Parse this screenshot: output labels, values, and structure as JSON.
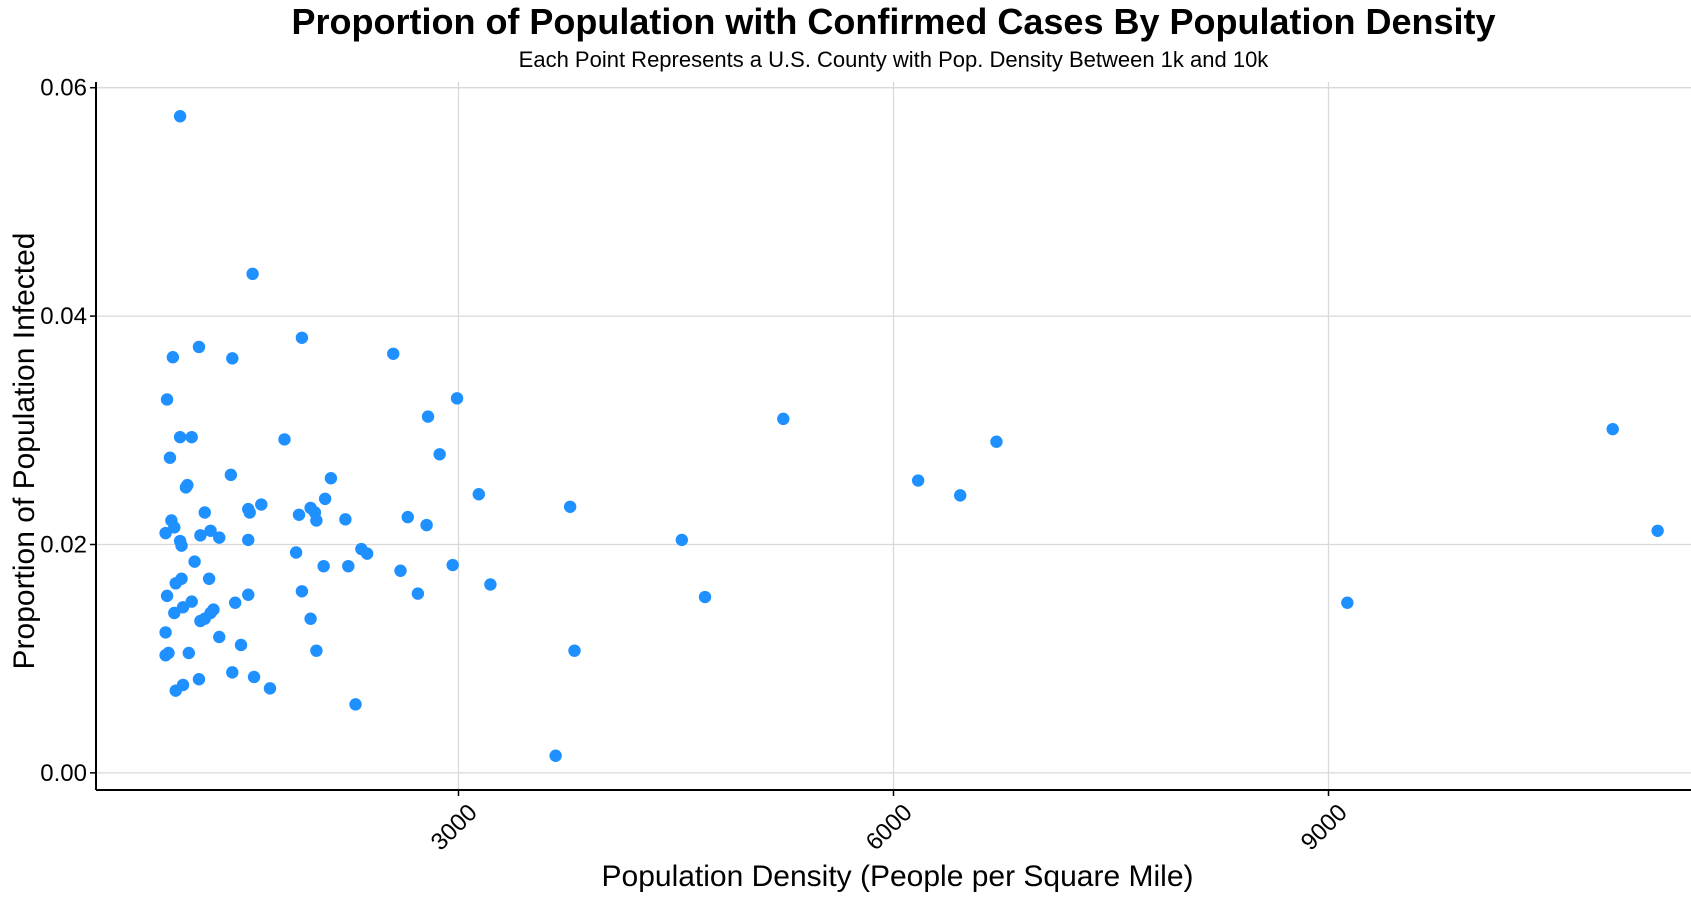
{
  "chart_data": {
    "type": "scatter",
    "title": "Proportion of Population with Confirmed Cases By Population Density",
    "subtitle": "Each Point Represents a U.S. County with Pop. Density Between 1k and 10k",
    "xlabel": "Population Density (People per Square Mile)",
    "ylabel": "Proportion of Population Infected",
    "xlim": [
      500,
      11500
    ],
    "ylim": [
      -0.0015,
      0.0605
    ],
    "x_ticks": [
      3000,
      6000,
      9000
    ],
    "x_tick_labels": [
      "3000",
      "6000",
      "9000"
    ],
    "y_ticks": [
      0.0,
      0.02,
      0.04,
      0.06
    ],
    "y_tick_labels": [
      "0.00",
      "0.02",
      "0.04",
      "0.06"
    ],
    "grid": true,
    "point_color": "#1e90ff",
    "points": [
      [
        1080,
        0.0575
      ],
      [
        1580,
        0.0437
      ],
      [
        1920,
        0.0381
      ],
      [
        2550,
        0.0367
      ],
      [
        1030,
        0.0364
      ],
      [
        1210,
        0.0373
      ],
      [
        1440,
        0.0363
      ],
      [
        990,
        0.0327
      ],
      [
        1080,
        0.0294
      ],
      [
        1160,
        0.0294
      ],
      [
        1010,
        0.0276
      ],
      [
        1120,
        0.025
      ],
      [
        1130,
        0.0252
      ],
      [
        1430,
        0.0261
      ],
      [
        1800,
        0.0292
      ],
      [
        2790,
        0.0312
      ],
      [
        2990,
        0.0328
      ],
      [
        2870,
        0.0279
      ],
      [
        5240,
        0.031
      ],
      [
        6710,
        0.029
      ],
      [
        6170,
        0.0256
      ],
      [
        6460,
        0.0243
      ],
      [
        10960,
        0.0301
      ],
      [
        11270,
        0.0212
      ],
      [
        1020,
        0.0221
      ],
      [
        1040,
        0.0215
      ],
      [
        980,
        0.021
      ],
      [
        1080,
        0.0203
      ],
      [
        1090,
        0.0199
      ],
      [
        1220,
        0.0208
      ],
      [
        1250,
        0.0228
      ],
      [
        1290,
        0.0212
      ],
      [
        1350,
        0.0206
      ],
      [
        1550,
        0.0231
      ],
      [
        1560,
        0.0228
      ],
      [
        1640,
        0.0235
      ],
      [
        1550,
        0.0204
      ],
      [
        1900,
        0.0226
      ],
      [
        1980,
        0.0232
      ],
      [
        2010,
        0.0228
      ],
      [
        2020,
        0.0221
      ],
      [
        2080,
        0.024
      ],
      [
        2120,
        0.0258
      ],
      [
        2220,
        0.0222
      ],
      [
        2650,
        0.0224
      ],
      [
        2780,
        0.0217
      ],
      [
        3140,
        0.0244
      ],
      [
        3770,
        0.0233
      ],
      [
        4540,
        0.0204
      ],
      [
        1180,
        0.0185
      ],
      [
        1280,
        0.017
      ],
      [
        1880,
        0.0193
      ],
      [
        2070,
        0.0181
      ],
      [
        2240,
        0.0181
      ],
      [
        2330,
        0.0196
      ],
      [
        2370,
        0.0192
      ],
      [
        2600,
        0.0177
      ],
      [
        2960,
        0.0182
      ],
      [
        3220,
        0.0165
      ],
      [
        1050,
        0.0166
      ],
      [
        1090,
        0.017
      ],
      [
        1100,
        0.0145
      ],
      [
        1040,
        0.014
      ],
      [
        990,
        0.0155
      ],
      [
        1160,
        0.015
      ],
      [
        1220,
        0.0133
      ],
      [
        1250,
        0.0135
      ],
      [
        1290,
        0.014
      ],
      [
        1310,
        0.0143
      ],
      [
        1460,
        0.0149
      ],
      [
        1550,
        0.0156
      ],
      [
        1920,
        0.0159
      ],
      [
        2720,
        0.0157
      ],
      [
        4700,
        0.0154
      ],
      [
        9130,
        0.0149
      ],
      [
        980,
        0.0123
      ],
      [
        980,
        0.0103
      ],
      [
        1000,
        0.0105
      ],
      [
        1140,
        0.0105
      ],
      [
        1350,
        0.0119
      ],
      [
        1500,
        0.0112
      ],
      [
        1980,
        0.0135
      ],
      [
        2020,
        0.0107
      ],
      [
        3800,
        0.0107
      ],
      [
        1050,
        0.0072
      ],
      [
        1100,
        0.0077
      ],
      [
        1210,
        0.0082
      ],
      [
        1440,
        0.0088
      ],
      [
        1590,
        0.0084
      ],
      [
        1700,
        0.0074
      ],
      [
        2290,
        0.006
      ],
      [
        3670,
        0.0015
      ]
    ]
  }
}
